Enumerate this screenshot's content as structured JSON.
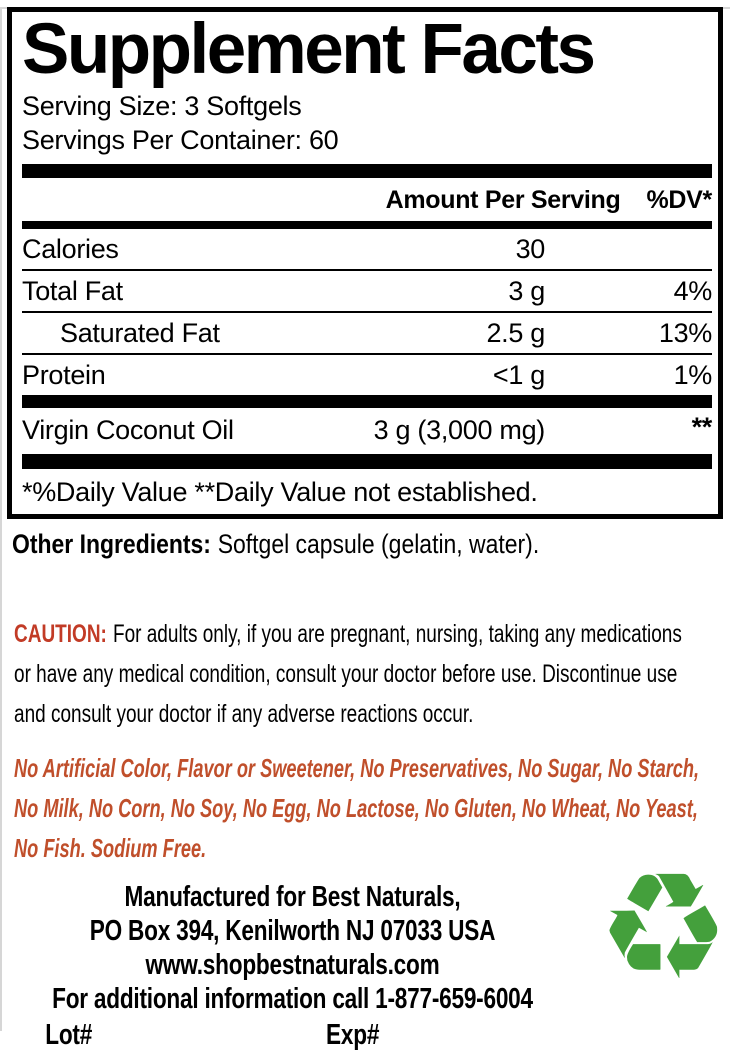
{
  "label": {
    "title": "Supplement Facts",
    "serving_size": "Serving Size: 3 Softgels",
    "servings_per_container": "Servings Per Container: 60",
    "columns": {
      "amount": "Amount Per Serving",
      "dv": "%DV*"
    },
    "rows": [
      {
        "name": "Calories",
        "amount": "30",
        "dv": ""
      },
      {
        "name": "Total Fat",
        "amount": "3 g",
        "dv": "4%"
      },
      {
        "name": "Saturated Fat",
        "amount": "2.5 g",
        "dv": "13%"
      },
      {
        "name": "Protein",
        "amount": "<1 g",
        "dv": "1%"
      }
    ],
    "ingredients": [
      {
        "name": "Virgin Coconut Oil",
        "amount": "3 g (3,000 mg)",
        "dv": "**"
      }
    ],
    "footnote": "*%Daily Value **Daily Value not established."
  },
  "other_ingredients": {
    "label": "Other Ingredients:",
    "text": "Softgel capsule (gelatin, water)."
  },
  "caution": {
    "label": "CAUTION:",
    "lines": [
      "For adults only, if you are pregnant, nursing, taking any medications",
      "or have any medical condition, consult your doctor before use. Discontinue use",
      "and consult your doctor if any adverse reactions occur."
    ]
  },
  "claims": {
    "lines": [
      "No Artificial Color, Flavor or Sweetener, No Preservatives, No Sugar, No Starch,",
      "No Milk, No Corn, No Soy, No Egg, No Lactose, No Gluten, No Wheat, No Yeast,",
      "No Fish. Sodium Free."
    ]
  },
  "footer": {
    "lines": [
      "Manufactured for Best Naturals,",
      "PO Box 394, Kenilworth NJ 07033 USA",
      "www.shopbestnaturals.com",
      "For additional information call 1-877-659-6004"
    ],
    "lot": "Lot#",
    "exp": "Exp#"
  },
  "icons": {
    "recycle": "recycle-symbol"
  },
  "colors": {
    "caution_red": "#c23b26",
    "claims_red": "#c04f2b",
    "recycle_green": "#44a03c",
    "text_black": "#000000"
  }
}
